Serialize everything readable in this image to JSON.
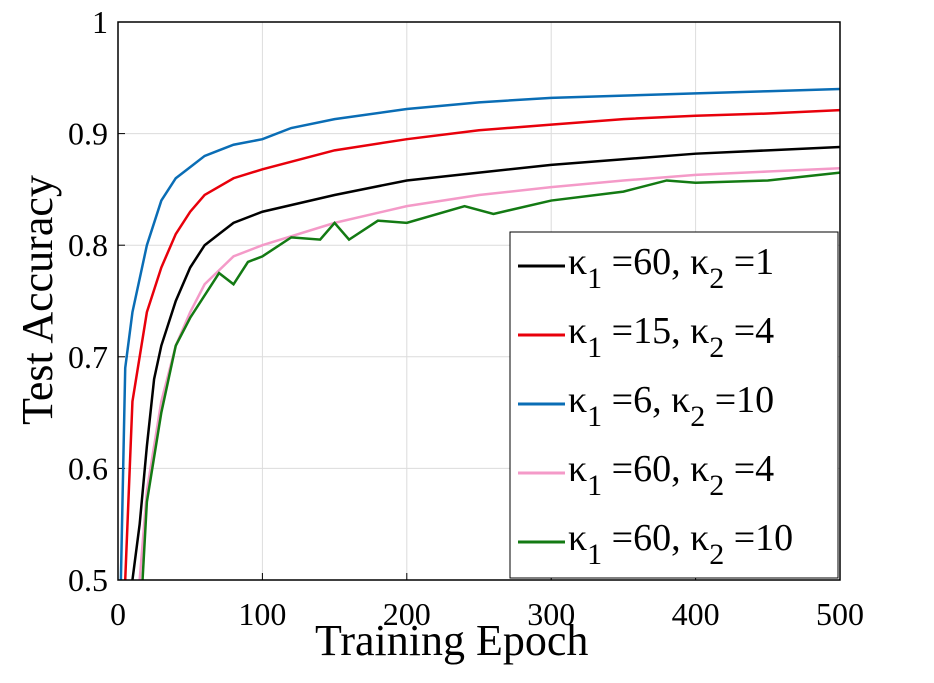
{
  "chart_data": {
    "type": "line",
    "xlabel": "Training Epoch",
    "ylabel": "Test Accuracy",
    "xlim": [
      0,
      500
    ],
    "ylim": [
      0.5,
      1
    ],
    "xticks": [
      0,
      100,
      200,
      300,
      400,
      500
    ],
    "yticks": [
      0.5,
      0.6,
      0.7,
      0.8,
      0.9,
      1
    ],
    "grid": true,
    "legend": "lower right",
    "series": [
      {
        "name": "κ1 =60, κ2 =1",
        "color": "#000000",
        "x": [
          10,
          15,
          20,
          25,
          30,
          40,
          50,
          60,
          70,
          80,
          100,
          150,
          200,
          250,
          300,
          350,
          400,
          450,
          500
        ],
        "values": [
          0.5,
          0.55,
          0.62,
          0.68,
          0.71,
          0.75,
          0.78,
          0.8,
          0.81,
          0.82,
          0.83,
          0.845,
          0.858,
          0.865,
          0.872,
          0.877,
          0.882,
          0.885,
          0.888
        ]
      },
      {
        "name": "κ1 =15, κ2 =4",
        "color": "#e8000b",
        "x": [
          5,
          10,
          20,
          30,
          40,
          50,
          60,
          80,
          100,
          150,
          200,
          250,
          300,
          350,
          400,
          450,
          500
        ],
        "values": [
          0.5,
          0.66,
          0.74,
          0.78,
          0.81,
          0.83,
          0.845,
          0.86,
          0.868,
          0.885,
          0.895,
          0.903,
          0.908,
          0.913,
          0.916,
          0.918,
          0.921
        ]
      },
      {
        "name": "κ1 =6, κ2 =10",
        "color": "#0a6db5",
        "x": [
          2,
          5,
          10,
          20,
          30,
          40,
          50,
          60,
          70,
          80,
          100,
          120,
          150,
          200,
          250,
          300,
          350,
          400,
          450,
          500
        ],
        "values": [
          0.5,
          0.69,
          0.74,
          0.8,
          0.84,
          0.86,
          0.87,
          0.88,
          0.885,
          0.89,
          0.895,
          0.905,
          0.913,
          0.922,
          0.928,
          0.932,
          0.934,
          0.936,
          0.938,
          0.94
        ]
      },
      {
        "name": "κ1 =60, κ2 =4",
        "color": "#f49ac8",
        "x": [
          15,
          20,
          30,
          40,
          50,
          60,
          80,
          100,
          150,
          200,
          250,
          300,
          350,
          400,
          450,
          500
        ],
        "values": [
          0.5,
          0.58,
          0.66,
          0.71,
          0.74,
          0.765,
          0.79,
          0.8,
          0.82,
          0.835,
          0.845,
          0.852,
          0.858,
          0.863,
          0.866,
          0.869
        ]
      },
      {
        "name": "κ1 =60, κ2 =10",
        "color": "#137a13",
        "x": [
          17,
          20,
          30,
          40,
          50,
          70,
          80,
          90,
          100,
          120,
          140,
          150,
          160,
          180,
          200,
          240,
          260,
          300,
          350,
          380,
          400,
          450,
          500
        ],
        "values": [
          0.5,
          0.57,
          0.65,
          0.71,
          0.735,
          0.775,
          0.765,
          0.785,
          0.79,
          0.807,
          0.805,
          0.82,
          0.805,
          0.822,
          0.82,
          0.835,
          0.828,
          0.84,
          0.848,
          0.858,
          0.856,
          0.858,
          0.865
        ]
      }
    ]
  }
}
